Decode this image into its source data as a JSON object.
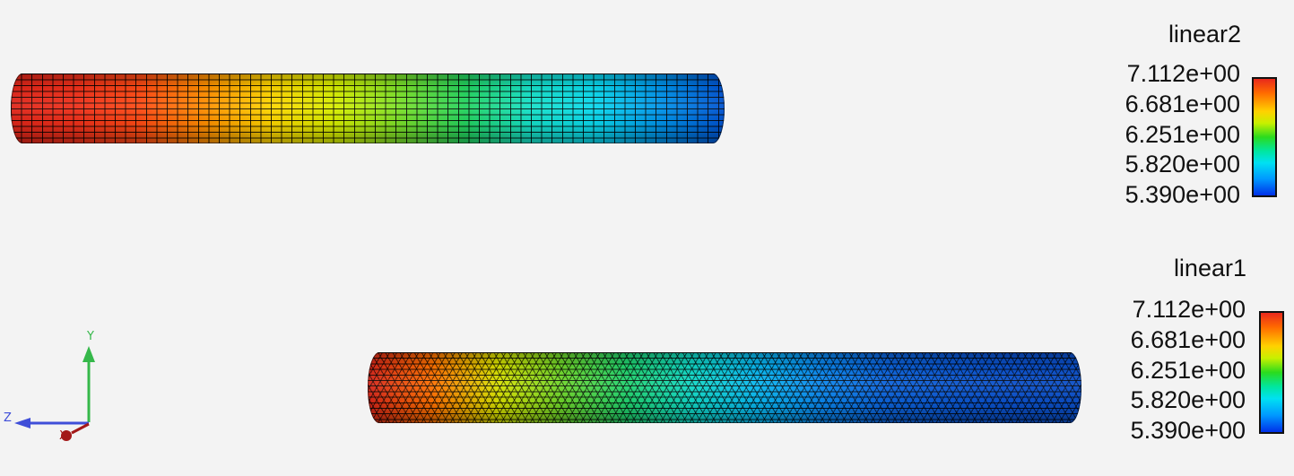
{
  "viewport": {
    "background": "#f3f3f3"
  },
  "top_mesh": {
    "name": "linear2",
    "element_type": "quadrilateral",
    "legend": {
      "title": "linear2",
      "labels": [
        "7.112e+00",
        "6.681e+00",
        "6.251e+00",
        "5.820e+00",
        "5.390e+00"
      ]
    },
    "field_profile": [
      "#e0261a",
      "#f0301a",
      "#ff4b14",
      "#ff8f00",
      "#ffd600",
      "#d7ef00",
      "#7be12a",
      "#24d45e",
      "#16e2c9",
      "#0ad9ee",
      "#0094ea",
      "#0052d1"
    ]
  },
  "bottom_mesh": {
    "name": "linear1",
    "element_type": "triangular",
    "legend": {
      "title": "linear1",
      "labels": [
        "7.112e+00",
        "6.681e+00",
        "6.251e+00",
        "5.820e+00",
        "5.390e+00"
      ]
    },
    "field_profile": [
      "#d52419",
      "#ff7100",
      "#d8e000",
      "#6cd52b",
      "#20d36f",
      "#10d8c8",
      "#08b7f0",
      "#0a86ee",
      "#0b63dc",
      "#0a57d2",
      "#0a50cc",
      "#0b4fc8"
    ]
  },
  "orientation_axes": {
    "y_label": "Y",
    "z_label": "Z",
    "x_label": "X",
    "y_color": "#35b84a",
    "z_color": "#3f4ed8",
    "x_color": "#a31919"
  }
}
